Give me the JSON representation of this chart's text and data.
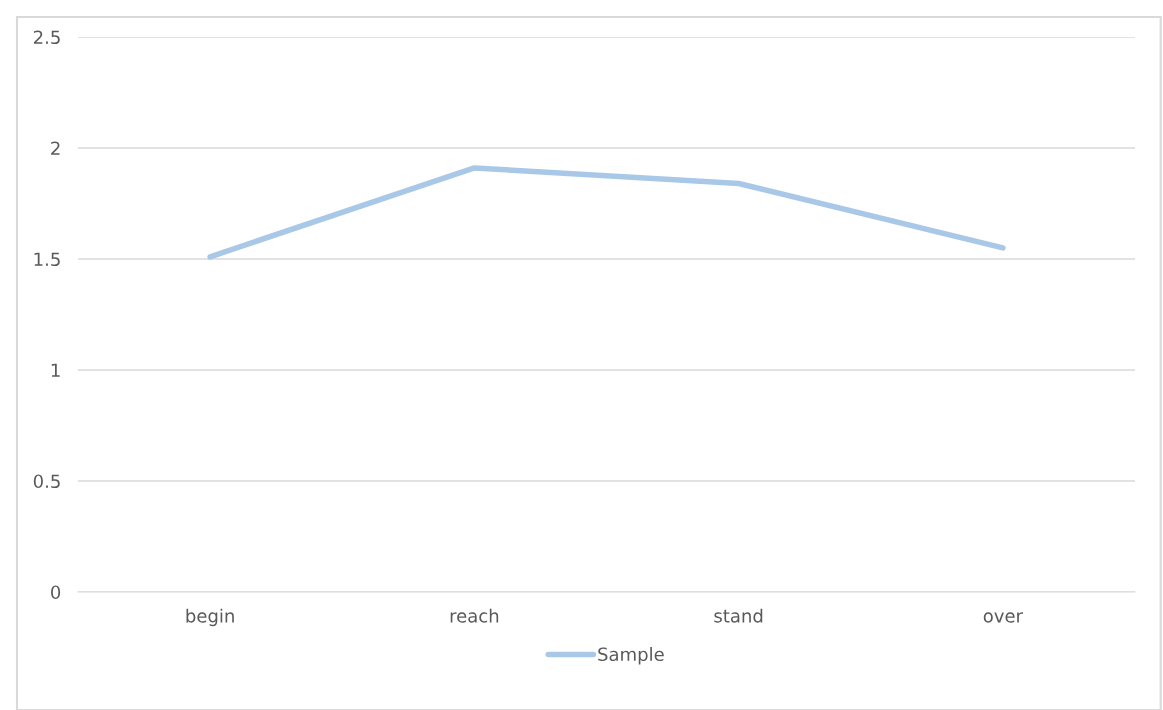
{
  "chart_data": {
    "type": "line",
    "categories": [
      "begin",
      "reach",
      "stand",
      "over"
    ],
    "series": [
      {
        "name": "Sample",
        "color": "#a9c8e8",
        "values": [
          1.51,
          1.91,
          1.84,
          1.55
        ]
      }
    ],
    "ylim": [
      0,
      2.5
    ],
    "yticks": [
      0,
      0.5,
      1,
      1.5,
      2,
      2.5
    ],
    "grid": "y",
    "legend": "bottom",
    "marker": "none"
  }
}
